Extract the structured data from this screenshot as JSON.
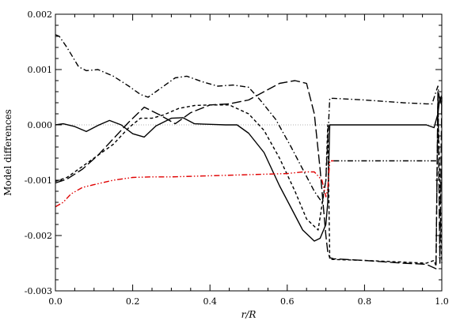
{
  "chart_data": {
    "type": "line",
    "xlabel": "r/R",
    "ylabel": "Model differences",
    "xlim": [
      0.0,
      1.0
    ],
    "ylim": [
      -0.003,
      0.002
    ],
    "xticks": [
      0.0,
      0.2,
      0.4,
      0.6,
      0.8,
      1.0
    ],
    "xtick_labels": [
      "0.0",
      "0.2",
      "0.4",
      "0.6",
      "0.8",
      "1.0"
    ],
    "yticks": [
      -0.003,
      -0.002,
      -0.001,
      0.0,
      0.001,
      0.002
    ],
    "ytick_labels": [
      "-0.003",
      "-0.002",
      "-0.001",
      "0.000",
      "0.001",
      "0.002"
    ],
    "reference_line": {
      "y": 0.0,
      "color": "#b0b0b0",
      "style": "dotted"
    },
    "series": [
      {
        "style": "solid",
        "color": "#000000",
        "x": [
          0.0,
          0.02,
          0.05,
          0.08,
          0.11,
          0.14,
          0.17,
          0.2,
          0.23,
          0.26,
          0.3,
          0.33,
          0.36,
          0.4,
          0.44,
          0.47,
          0.5,
          0.54,
          0.58,
          0.61,
          0.64,
          0.67,
          0.685,
          0.7,
          0.705,
          0.71,
          0.72,
          0.8,
          0.9,
          0.96,
          0.98,
          0.99,
          0.995,
          1.0
        ],
        "y": [
          0.0,
          2e-05,
          -3e-05,
          -0.00012,
          -1e-05,
          8e-05,
          0.0,
          -0.00016,
          -0.00022,
          -2e-05,
          0.00012,
          0.00013,
          2e-05,
          1e-05,
          0.0,
          0.0,
          -0.00015,
          -0.0005,
          -0.0011,
          -0.0015,
          -0.0019,
          -0.0021,
          -0.00205,
          -0.0018,
          -0.0014,
          0.0,
          0.0,
          0.0,
          0.0,
          0.0,
          -5e-05,
          0.0002,
          0.0005,
          0.00035
        ]
      },
      {
        "style": "dashed",
        "color": "#000000",
        "x": [
          0.0,
          0.03,
          0.07,
          0.11,
          0.15,
          0.19,
          0.22,
          0.25,
          0.28,
          0.32,
          0.36,
          0.4,
          0.45,
          0.5,
          0.54,
          0.58,
          0.62,
          0.65,
          0.68,
          0.7,
          0.705,
          0.71,
          0.8,
          0.9,
          0.96,
          0.98,
          0.985,
          0.99,
          1.0
        ],
        "y": [
          -0.00102,
          -0.00095,
          -0.00075,
          -0.00055,
          -0.00035,
          -5e-05,
          0.00012,
          0.00012,
          0.00018,
          0.0003,
          0.00035,
          0.00036,
          0.00036,
          0.0002,
          -0.0001,
          -0.0006,
          -0.0012,
          -0.0017,
          -0.0019,
          -0.001,
          0.0,
          -0.00243,
          -0.00245,
          -0.00248,
          -0.0025,
          -0.00245,
          -0.00255,
          0.0004,
          -0.0025
        ]
      },
      {
        "style": "long-dashed",
        "color": "#000000",
        "x": [
          0.0,
          0.03,
          0.07,
          0.11,
          0.15,
          0.19,
          0.23,
          0.27,
          0.31,
          0.35,
          0.4,
          0.45,
          0.5,
          0.54,
          0.58,
          0.62,
          0.65,
          0.67,
          0.685,
          0.7,
          0.705,
          0.71,
          0.72,
          0.8,
          0.9,
          0.96,
          0.985,
          0.99,
          0.995,
          1.0
        ],
        "y": [
          -0.00105,
          -0.00098,
          -0.0008,
          -0.00055,
          -0.00025,
          5e-05,
          0.00032,
          0.00018,
          2e-05,
          0.00022,
          0.00036,
          0.00038,
          0.00045,
          0.0006,
          0.00075,
          0.0008,
          0.00075,
          0.0002,
          -0.0008,
          -0.002,
          -0.0023,
          -0.0024,
          -0.00242,
          -0.00245,
          -0.0025,
          -0.00252,
          -0.0026,
          0.0006,
          -0.0025,
          0.0005
        ]
      },
      {
        "style": "dash-dot",
        "color": "#000000",
        "x": [
          0.0,
          0.01,
          0.03,
          0.06,
          0.08,
          0.11,
          0.15,
          0.19,
          0.22,
          0.24,
          0.27,
          0.31,
          0.34,
          0.38,
          0.42,
          0.46,
          0.5,
          0.53,
          0.57,
          0.61,
          0.64,
          0.67,
          0.69,
          0.7,
          0.71,
          0.72,
          0.8,
          0.9,
          0.96,
          0.975,
          0.985,
          0.99,
          0.995,
          1.0
        ],
        "y": [
          0.00163,
          0.0016,
          0.0014,
          0.00105,
          0.00098,
          0.001,
          0.00088,
          0.0007,
          0.00055,
          0.0005,
          0.00065,
          0.00085,
          0.00088,
          0.00078,
          0.0007,
          0.00072,
          0.00068,
          0.00045,
          0.0001,
          -0.0004,
          -0.0008,
          -0.0012,
          -0.0014,
          -0.001,
          0.00048,
          0.00048,
          0.00045,
          0.0004,
          0.00038,
          0.00038,
          0.0006,
          0.0007,
          0.0004,
          0.00055
        ]
      },
      {
        "style": "dash-dot-dot",
        "color": "#e00000",
        "x": [
          0.0,
          0.02,
          0.04,
          0.07,
          0.1,
          0.15,
          0.2,
          0.25,
          0.3,
          0.4,
          0.5,
          0.6,
          0.64,
          0.67,
          0.69,
          0.7,
          0.705,
          0.71,
          0.72
        ],
        "y": [
          -0.00148,
          -0.0014,
          -0.00125,
          -0.00113,
          -0.00108,
          -0.001,
          -0.00095,
          -0.00094,
          -0.00094,
          -0.00092,
          -0.0009,
          -0.00088,
          -0.00085,
          -0.00085,
          -0.001,
          -0.0013,
          -0.00115,
          -0.00065,
          -0.00065
        ]
      },
      {
        "style": "dash-dot-dot",
        "color": "#000000",
        "x": [
          0.72,
          0.8,
          0.9,
          0.98,
          0.99
        ],
        "y": [
          -0.00065,
          -0.00065,
          -0.00065,
          -0.00065,
          -0.00065
        ]
      }
    ]
  }
}
